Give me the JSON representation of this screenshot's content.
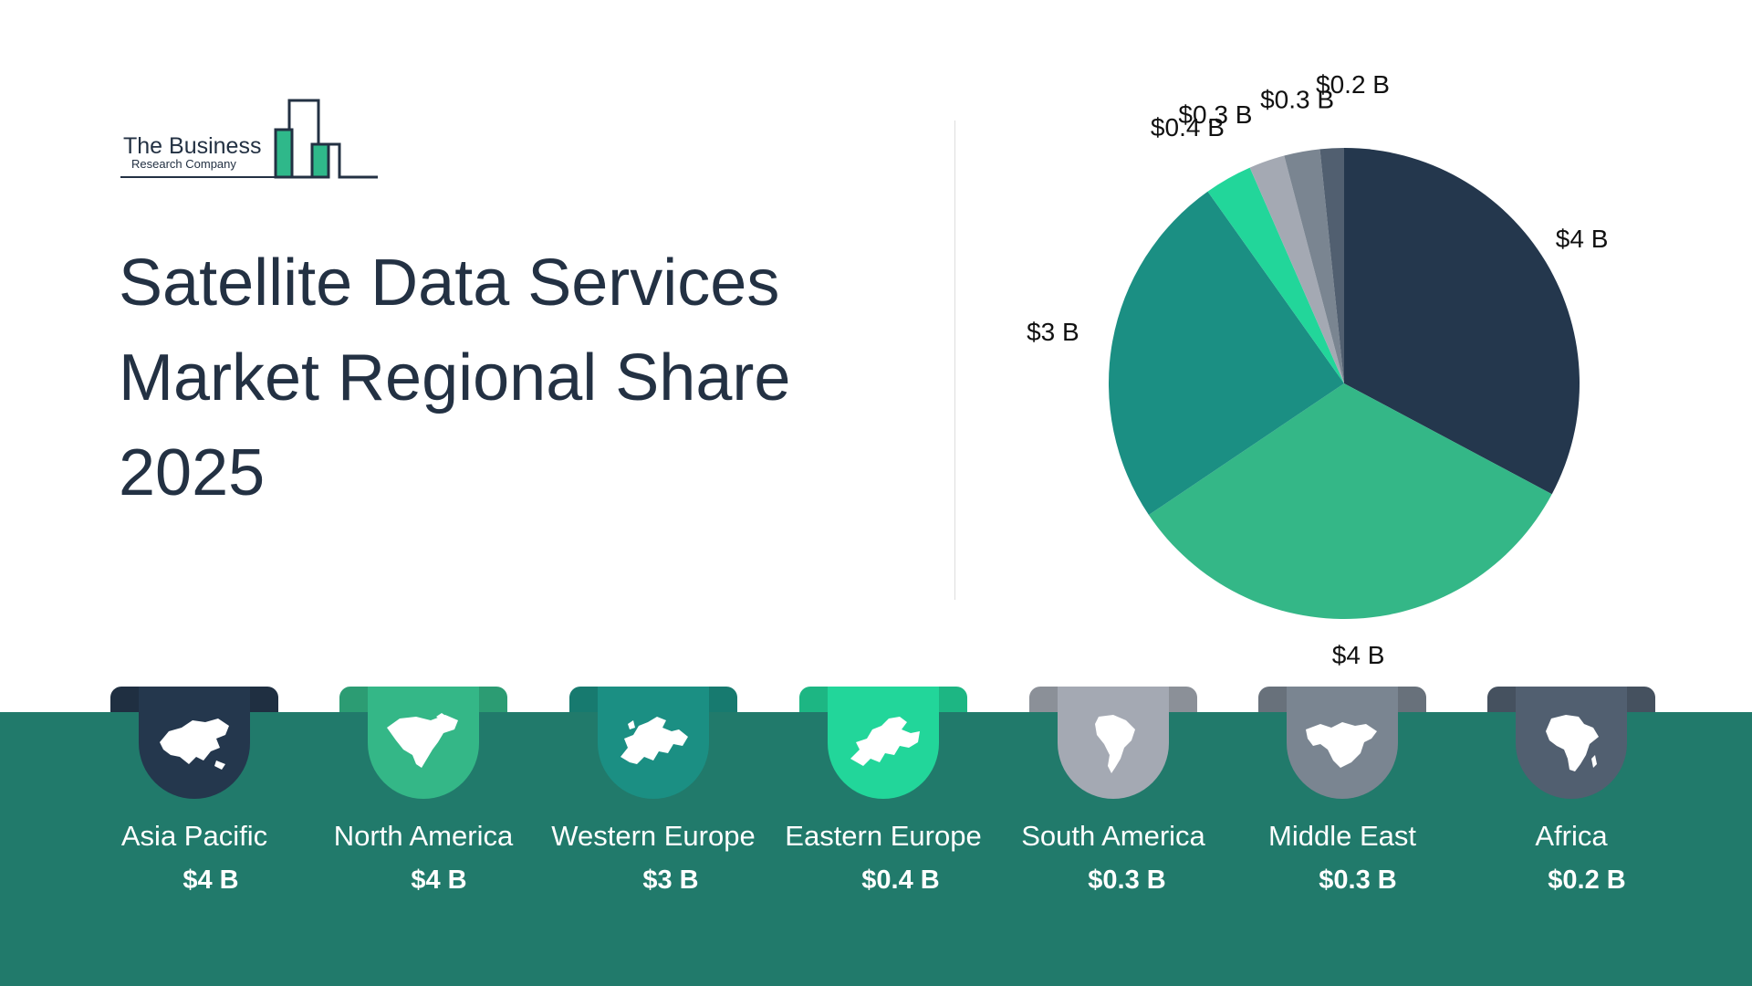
{
  "logo": {
    "line1": "The Business",
    "line2": "Research Company"
  },
  "title_lines": [
    "Satellite Data Services",
    "Market Regional Share",
    "2025"
  ],
  "colors": {
    "band": "#217a6b",
    "asia_pacific": "#24374d",
    "north_america": "#34b787",
    "western_europe": "#1b8f83",
    "eastern_europe": "#22d69a",
    "south_america": "#a4a9b3",
    "middle_east": "#7a8591",
    "africa": "#515f70"
  },
  "chart_data": {
    "type": "pie",
    "title": "Satellite Data Services Market Regional Share 2025",
    "unit": "B",
    "slices": [
      {
        "name": "Asia Pacific",
        "value": 4,
        "label": "$4 B",
        "color": "#24374d"
      },
      {
        "name": "North America",
        "value": 4,
        "label": "$4 B",
        "color": "#34b787"
      },
      {
        "name": "Western Europe",
        "value": 3,
        "label": "$3 B",
        "color": "#1b8f83"
      },
      {
        "name": "Eastern Europe",
        "value": 0.4,
        "label": "$0.4 B",
        "color": "#22d69a"
      },
      {
        "name": "South America",
        "value": 0.3,
        "label": "$0.3 B",
        "color": "#a4a9b3"
      },
      {
        "name": "Middle East",
        "value": 0.3,
        "label": "$0.3 B",
        "color": "#7a8591"
      },
      {
        "name": "Africa",
        "value": 0.2,
        "label": "$0.2 B",
        "color": "#515f70"
      }
    ]
  },
  "regions": [
    {
      "name": "Asia Pacific",
      "value": "$4 B",
      "icon": "asia-map-icon"
    },
    {
      "name": "North America",
      "value": "$4 B",
      "icon": "north-america-map-icon"
    },
    {
      "name": "Western Europe",
      "value": "$3 B",
      "icon": "western-europe-map-icon"
    },
    {
      "name": "Eastern Europe",
      "value": "$0.4 B",
      "icon": "eastern-europe-map-icon"
    },
    {
      "name": "South America",
      "value": "$0.3 B",
      "icon": "south-america-map-icon"
    },
    {
      "name": "Middle East",
      "value": "$0.3 B",
      "icon": "middle-east-map-icon"
    },
    {
      "name": "Africa",
      "value": "$0.2 B",
      "icon": "africa-map-icon"
    }
  ]
}
